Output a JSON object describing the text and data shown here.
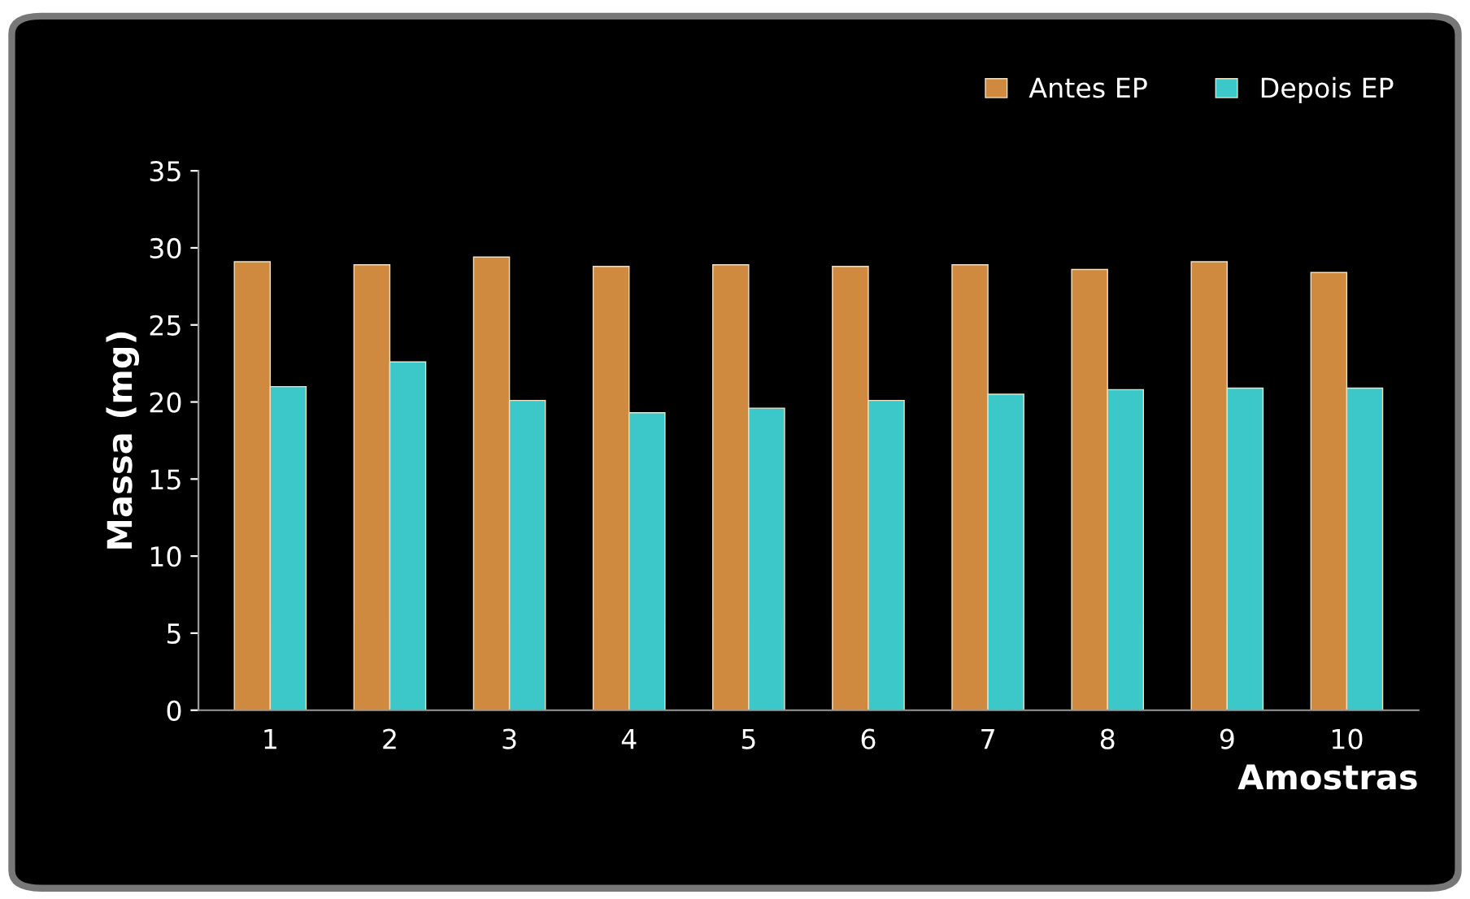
{
  "chart_data": {
    "type": "bar",
    "xlabel": "Amostras",
    "ylabel": "Massa (mg)",
    "categories": [
      "1",
      "2",
      "3",
      "4",
      "5",
      "6",
      "7",
      "8",
      "9",
      "10"
    ],
    "series": [
      {
        "name": "Antes EP",
        "color": "#d08a40",
        "values": [
          29.1,
          28.9,
          29.4,
          28.8,
          28.9,
          28.8,
          28.9,
          28.6,
          29.1,
          28.4
        ]
      },
      {
        "name": "Depois EP",
        "color": "#3cc8c8",
        "values": [
          21.0,
          22.6,
          20.1,
          19.3,
          19.6,
          20.1,
          20.5,
          20.8,
          20.9,
          20.9
        ]
      }
    ],
    "ylim": [
      0,
      35
    ],
    "yticks": [
      0,
      5,
      10,
      15,
      20,
      25,
      30,
      35
    ],
    "grid": false,
    "legend": "top right"
  }
}
